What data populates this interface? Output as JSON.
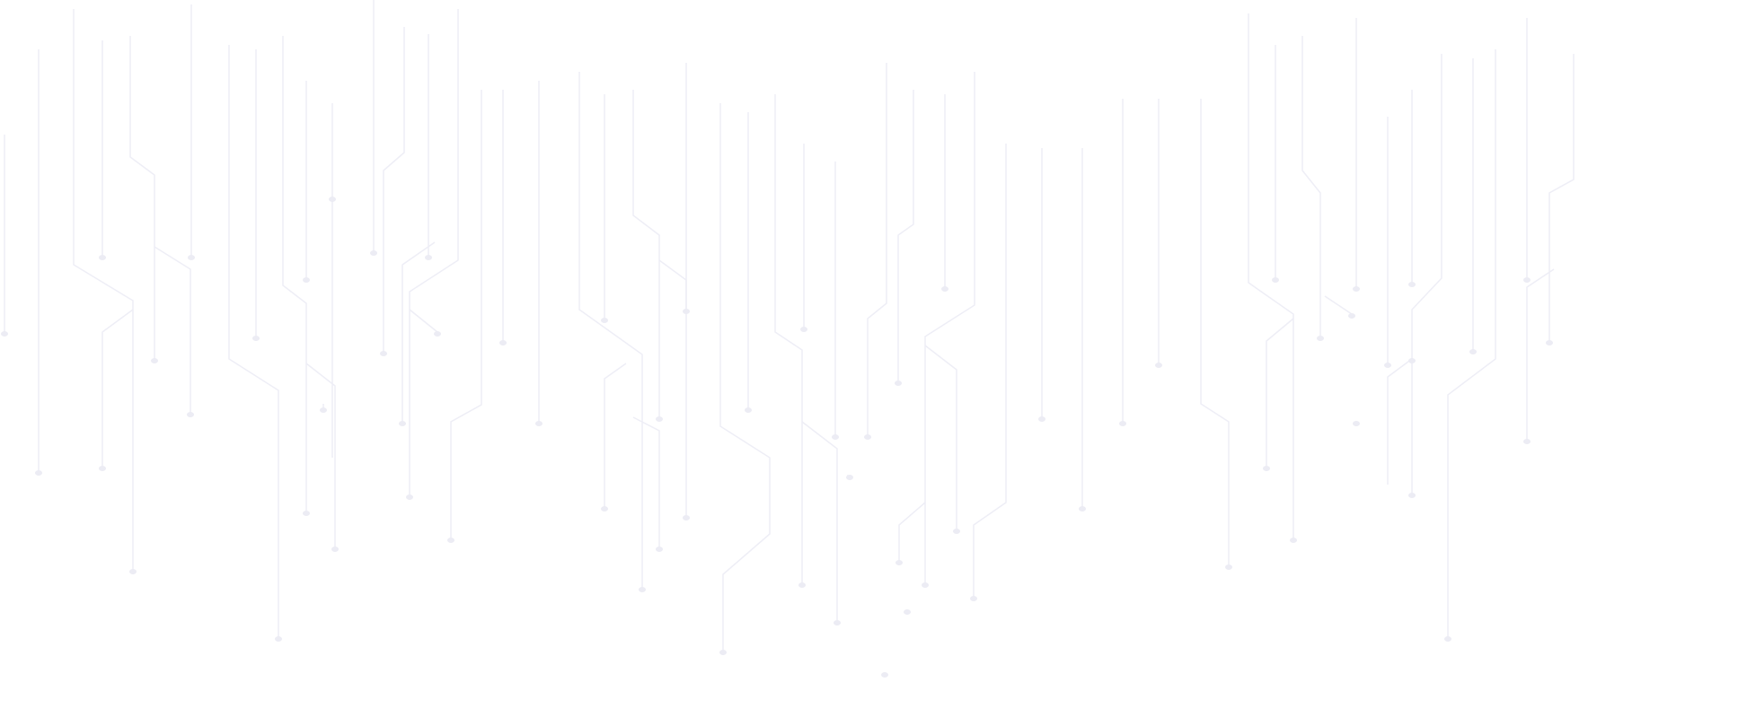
{
  "background": {
    "pattern": "circuit-lines",
    "background_color": "#ffffff",
    "line_color": "#eeeef6",
    "dot_color": "#ececf4"
  }
}
